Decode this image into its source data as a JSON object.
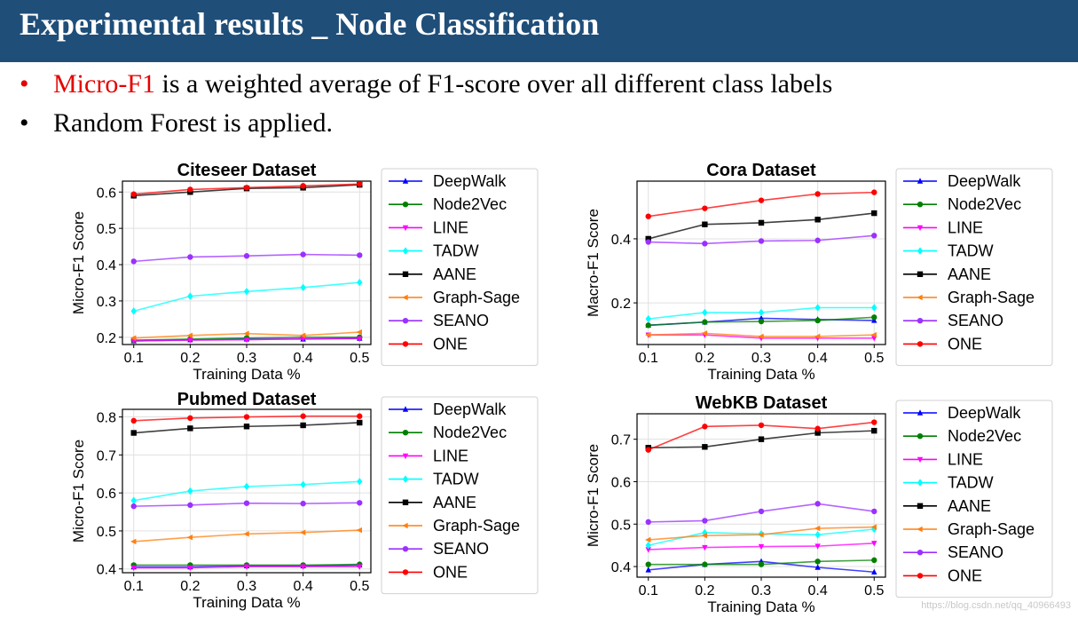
{
  "slide": {
    "title": "Experimental results _ Node Classification",
    "bullets": [
      {
        "marker": "•",
        "highlight": "Micro-F1",
        "text": " is a weighted average of F1-score over all different class labels"
      },
      {
        "marker": "•",
        "text": "Random Forest is applied."
      }
    ],
    "watermark": "https://blog.csdn.net/qq_40966493"
  },
  "colors": {
    "title_bg": "#1f4e79",
    "highlight": "#e60000"
  },
  "legend": [
    {
      "name": "DeepWalk",
      "color": "#0000ff",
      "marker": "triangle"
    },
    {
      "name": "Node2Vec",
      "color": "#008000",
      "marker": "circle"
    },
    {
      "name": "LINE",
      "color": "#ff00ff",
      "marker": "triangle-down"
    },
    {
      "name": "TADW",
      "color": "#00ffff",
      "marker": "diamond"
    },
    {
      "name": "AANE",
      "color": "#000000",
      "marker": "square"
    },
    {
      "name": "Graph-Sage",
      "color": "#ff7f0e",
      "marker": "triangle-left"
    },
    {
      "name": "SEANO",
      "color": "#9b30ff",
      "marker": "circle"
    },
    {
      "name": "ONE",
      "color": "#ff0000",
      "marker": "circle"
    }
  ],
  "chart_data": [
    {
      "type": "line",
      "title": "Citeseer Dataset",
      "xlabel": "Training Data %",
      "ylabel": "Micro-F1 Score",
      "x": [
        0.1,
        0.2,
        0.3,
        0.4,
        0.5
      ],
      "x_ticks": [
        "0.1",
        "0.2",
        "0.3",
        "0.4",
        "0.5"
      ],
      "y_ticks": [
        "0.2",
        "0.3",
        "0.4",
        "0.5",
        "0.6"
      ],
      "ylim": [
        0.18,
        0.63
      ],
      "grid": true,
      "legend_position": "right",
      "series": [
        {
          "name": "DeepWalk",
          "values": [
            0.19,
            0.193,
            0.195,
            0.195,
            0.197
          ]
        },
        {
          "name": "Node2Vec",
          "values": [
            0.192,
            0.195,
            0.198,
            0.2,
            0.2
          ]
        },
        {
          "name": "LINE",
          "values": [
            0.19,
            0.192,
            0.193,
            0.196,
            0.196
          ]
        },
        {
          "name": "TADW",
          "values": [
            0.272,
            0.313,
            0.326,
            0.337,
            0.351
          ]
        },
        {
          "name": "AANE",
          "values": [
            0.59,
            0.6,
            0.61,
            0.612,
            0.62
          ]
        },
        {
          "name": "Graph-Sage",
          "values": [
            0.198,
            0.205,
            0.21,
            0.205,
            0.214
          ]
        },
        {
          "name": "SEANO",
          "values": [
            0.409,
            0.421,
            0.424,
            0.428,
            0.426
          ]
        },
        {
          "name": "ONE",
          "values": [
            0.594,
            0.607,
            0.612,
            0.617,
            0.622
          ]
        }
      ]
    },
    {
      "type": "line",
      "title": "Cora Dataset",
      "xlabel": "Training Data %",
      "ylabel": "Macro-F1 Score",
      "x": [
        0.1,
        0.2,
        0.3,
        0.4,
        0.5
      ],
      "x_ticks": [
        "0.1",
        "0.2",
        "0.3",
        "0.4",
        "0.5"
      ],
      "y_ticks": [
        "0.2",
        "0.4"
      ],
      "ylim": [
        0.07,
        0.58
      ],
      "grid": true,
      "legend_position": "right",
      "series": [
        {
          "name": "DeepWalk",
          "values": [
            0.13,
            0.14,
            0.152,
            0.148,
            0.145
          ]
        },
        {
          "name": "Node2Vec",
          "values": [
            0.13,
            0.14,
            0.142,
            0.145,
            0.155
          ]
        },
        {
          "name": "LINE",
          "values": [
            0.1,
            0.1,
            0.09,
            0.09,
            0.09
          ]
        },
        {
          "name": "TADW",
          "values": [
            0.15,
            0.17,
            0.17,
            0.185,
            0.185
          ]
        },
        {
          "name": "AANE",
          "values": [
            0.4,
            0.445,
            0.45,
            0.46,
            0.48
          ]
        },
        {
          "name": "Graph-Sage",
          "values": [
            0.1,
            0.105,
            0.095,
            0.095,
            0.1
          ]
        },
        {
          "name": "SEANO",
          "values": [
            0.39,
            0.385,
            0.393,
            0.395,
            0.41
          ]
        },
        {
          "name": "ONE",
          "values": [
            0.47,
            0.495,
            0.52,
            0.54,
            0.545
          ]
        }
      ]
    },
    {
      "type": "line",
      "title": "Pubmed Dataset",
      "xlabel": "Training Data %",
      "ylabel": "Micro-F1 Score",
      "x": [
        0.1,
        0.2,
        0.3,
        0.4,
        0.5
      ],
      "x_ticks": [
        "0.1",
        "0.2",
        "0.3",
        "0.4",
        "0.5"
      ],
      "y_ticks": [
        "0.4",
        "0.5",
        "0.6",
        "0.7",
        "0.8"
      ],
      "ylim": [
        0.39,
        0.82
      ],
      "grid": true,
      "legend_position": "right",
      "series": [
        {
          "name": "DeepWalk",
          "values": [
            0.405,
            0.405,
            0.408,
            0.408,
            0.41
          ]
        },
        {
          "name": "Node2Vec",
          "values": [
            0.41,
            0.41,
            0.41,
            0.41,
            0.412
          ]
        },
        {
          "name": "LINE",
          "values": [
            0.403,
            0.403,
            0.406,
            0.406,
            0.406
          ]
        },
        {
          "name": "TADW",
          "values": [
            0.58,
            0.605,
            0.617,
            0.622,
            0.63
          ]
        },
        {
          "name": "AANE",
          "values": [
            0.758,
            0.77,
            0.775,
            0.778,
            0.785
          ]
        },
        {
          "name": "Graph-Sage",
          "values": [
            0.472,
            0.483,
            0.492,
            0.496,
            0.502
          ]
        },
        {
          "name": "SEANO",
          "values": [
            0.565,
            0.568,
            0.573,
            0.572,
            0.574
          ]
        },
        {
          "name": "ONE",
          "values": [
            0.79,
            0.797,
            0.8,
            0.802,
            0.802
          ]
        }
      ]
    },
    {
      "type": "line",
      "title": "WebKB Dataset",
      "xlabel": "Training Data %",
      "ylabel": "Micro-F1 Score",
      "x": [
        0.1,
        0.2,
        0.3,
        0.4,
        0.5
      ],
      "x_ticks": [
        "0.1",
        "0.2",
        "0.3",
        "0.4",
        "0.5"
      ],
      "y_ticks": [
        "0.4",
        "0.5",
        "0.6",
        "0.7"
      ],
      "ylim": [
        0.375,
        0.76
      ],
      "grid": true,
      "legend_position": "right",
      "series": [
        {
          "name": "DeepWalk",
          "values": [
            0.392,
            0.405,
            0.412,
            0.398,
            0.387
          ]
        },
        {
          "name": "Node2Vec",
          "values": [
            0.405,
            0.405,
            0.405,
            0.412,
            0.415
          ]
        },
        {
          "name": "LINE",
          "values": [
            0.44,
            0.445,
            0.447,
            0.448,
            0.455
          ]
        },
        {
          "name": "TADW",
          "values": [
            0.45,
            0.48,
            0.477,
            0.475,
            0.488
          ]
        },
        {
          "name": "AANE",
          "values": [
            0.68,
            0.682,
            0.7,
            0.715,
            0.72
          ]
        },
        {
          "name": "Graph-Sage",
          "values": [
            0.463,
            0.473,
            0.475,
            0.49,
            0.493
          ]
        },
        {
          "name": "SEANO",
          "values": [
            0.505,
            0.508,
            0.53,
            0.548,
            0.53
          ]
        },
        {
          "name": "ONE",
          "values": [
            0.675,
            0.73,
            0.733,
            0.725,
            0.74
          ]
        }
      ]
    }
  ]
}
